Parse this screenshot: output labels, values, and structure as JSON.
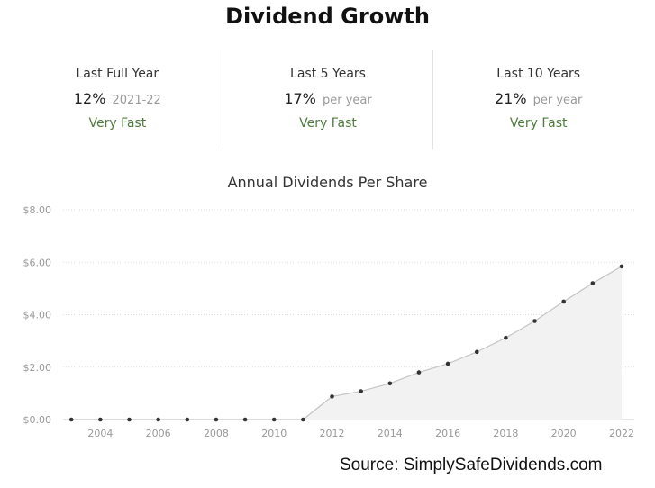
{
  "title": "Dividend Growth",
  "stats": [
    {
      "label": "Last Full Year",
      "value": "12%",
      "suffix": "2021-22",
      "rating": "Very Fast"
    },
    {
      "label": "Last 5 Years",
      "value": "17%",
      "suffix": "per year",
      "rating": "Very Fast"
    },
    {
      "label": "Last 10 Years",
      "value": "21%",
      "suffix": "per year",
      "rating": "Very Fast"
    }
  ],
  "source": "Source: SimplySafeDividends.com",
  "colors": {
    "rating": "#4e7a3c",
    "line": "#c4c4c4",
    "area": "#f2f2f2",
    "point": "#333333"
  },
  "chart_data": {
    "type": "area",
    "title": "Annual Dividends Per Share",
    "xlabel": "",
    "ylabel": "",
    "x": [
      2003,
      2004,
      2005,
      2006,
      2007,
      2008,
      2009,
      2010,
      2011,
      2012,
      2013,
      2014,
      2015,
      2016,
      2017,
      2018,
      2019,
      2020,
      2021,
      2022
    ],
    "values": [
      0,
      0,
      0,
      0,
      0,
      0,
      0,
      0,
      0,
      0.88,
      1.08,
      1.38,
      1.8,
      2.13,
      2.58,
      3.12,
      3.76,
      4.5,
      5.2,
      5.84
    ],
    "xticks": [
      "2004",
      "2006",
      "2008",
      "2010",
      "2012",
      "2014",
      "2016",
      "2018",
      "2020",
      "2022"
    ],
    "yticks": [
      "$0.00",
      "$2.00",
      "$4.00",
      "$6.00",
      "$8.00"
    ],
    "ylim": [
      0,
      8
    ],
    "grid": true
  }
}
